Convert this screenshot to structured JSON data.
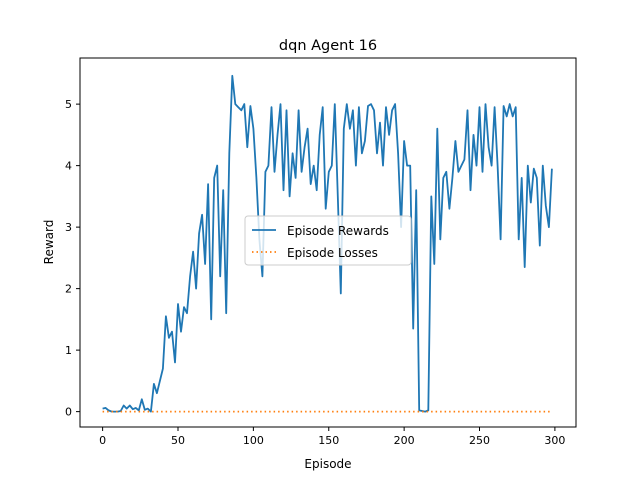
{
  "chart_data": {
    "type": "line",
    "title": "dqn Agent 16",
    "xlabel": "Episode",
    "ylabel": "Reward",
    "xlim": [
      -15,
      314
    ],
    "ylim": [
      -0.25,
      5.75
    ],
    "xticks": [
      0,
      50,
      100,
      150,
      200,
      250,
      300
    ],
    "yticks": [
      0,
      1,
      2,
      3,
      4,
      5
    ],
    "grid": false,
    "legend_position": "center",
    "series": [
      {
        "name": "Episode Rewards",
        "style": "solid",
        "color": "#1f77b4",
        "x": [
          0,
          2,
          4,
          6,
          8,
          10,
          12,
          14,
          16,
          18,
          20,
          22,
          24,
          26,
          28,
          30,
          32,
          34,
          36,
          38,
          40,
          42,
          44,
          46,
          48,
          50,
          52,
          54,
          56,
          58,
          60,
          62,
          64,
          66,
          68,
          70,
          72,
          74,
          76,
          78,
          80,
          82,
          84,
          86,
          88,
          90,
          92,
          94,
          96,
          98,
          100,
          102,
          104,
          106,
          108,
          110,
          112,
          114,
          116,
          118,
          120,
          122,
          124,
          126,
          128,
          130,
          132,
          134,
          136,
          138,
          140,
          142,
          144,
          146,
          148,
          150,
          152,
          154,
          156,
          158,
          160,
          162,
          164,
          166,
          168,
          170,
          172,
          174,
          176,
          178,
          180,
          182,
          184,
          186,
          188,
          190,
          192,
          194,
          196,
          198,
          200,
          202,
          204,
          206,
          208,
          210,
          212,
          214,
          216,
          218,
          220,
          222,
          224,
          226,
          228,
          230,
          232,
          234,
          236,
          238,
          240,
          242,
          244,
          246,
          248,
          250,
          252,
          254,
          256,
          258,
          260,
          262,
          264,
          266,
          268,
          270,
          272,
          274,
          276,
          278,
          280,
          282,
          284,
          286,
          288,
          290,
          292,
          294,
          296,
          298
        ],
        "y": [
          0.05,
          0.06,
          0.02,
          0.0,
          0.0,
          0.0,
          0.01,
          0.1,
          0.05,
          0.1,
          0.04,
          0.06,
          0.02,
          0.2,
          0.03,
          0.05,
          0.0,
          0.45,
          0.3,
          0.5,
          0.7,
          1.55,
          1.2,
          1.3,
          0.8,
          1.75,
          1.3,
          1.7,
          1.6,
          2.2,
          2.6,
          2.0,
          2.9,
          3.2,
          2.4,
          3.7,
          1.5,
          3.8,
          4.0,
          2.2,
          3.6,
          1.6,
          4.2,
          5.46,
          5.0,
          4.95,
          4.9,
          5.0,
          4.3,
          4.97,
          4.6,
          3.8,
          2.8,
          2.2,
          3.9,
          4.0,
          4.95,
          3.9,
          4.5,
          5.0,
          3.6,
          4.9,
          3.5,
          4.2,
          3.8,
          4.9,
          3.9,
          4.3,
          4.6,
          3.7,
          4.0,
          3.6,
          4.5,
          4.95,
          3.3,
          3.9,
          4.0,
          5.0,
          3.5,
          1.92,
          4.6,
          5.0,
          4.6,
          4.9,
          4.0,
          4.95,
          4.2,
          4.4,
          4.97,
          5.0,
          4.9,
          4.2,
          4.7,
          4.0,
          4.95,
          4.5,
          4.9,
          5.0,
          4.2,
          3.0,
          4.4,
          4.0,
          4.0,
          1.35,
          3.6,
          0.02,
          0.01,
          0.0,
          0.02,
          3.5,
          2.4,
          4.6,
          2.8,
          3.8,
          3.9,
          3.3,
          3.8,
          4.4,
          3.9,
          4.0,
          4.1,
          4.9,
          3.6,
          4.5,
          4.0,
          4.95,
          3.9,
          5.0,
          4.3,
          4.0,
          4.95,
          4.0,
          2.8,
          4.97,
          4.8,
          5.0,
          4.8,
          4.95,
          2.8,
          3.8,
          2.35,
          4.0,
          3.4,
          3.95,
          3.8,
          2.7,
          4.0,
          3.35,
          3.0,
          3.95
        ]
      },
      {
        "name": "Episode Losses",
        "style": "dotted",
        "color": "#ff7f0e",
        "x": [
          0,
          298
        ],
        "y": [
          0.0,
          0.0
        ]
      }
    ]
  }
}
